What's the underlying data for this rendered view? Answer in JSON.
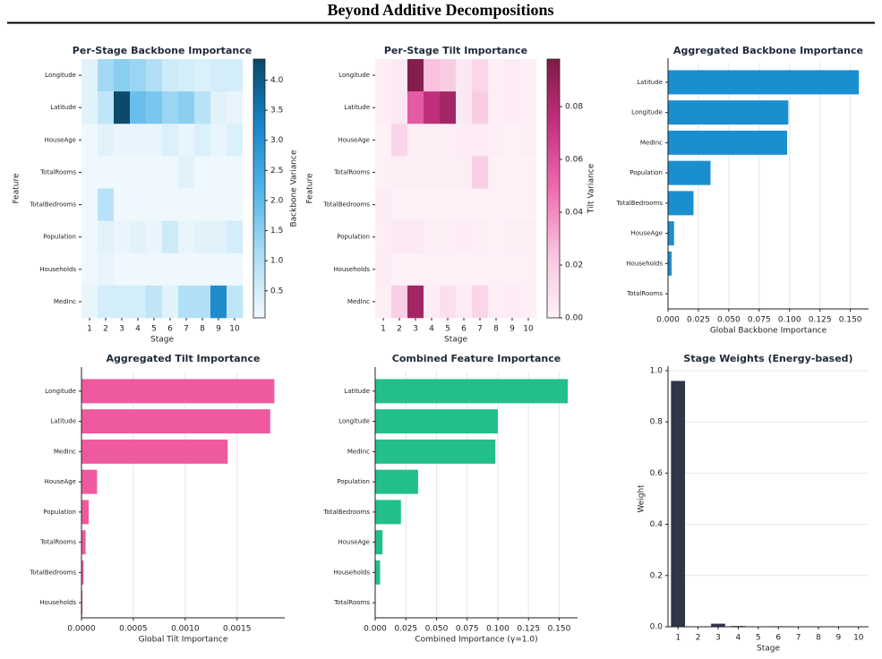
{
  "title": "Beyond Additive Decompositions",
  "chart_data": [
    {
      "type": "heatmap",
      "title": "Per-Stage Backbone Importance",
      "xlabel": "Stage",
      "ylabel": "Feature",
      "zlabel": "Backbone Variance",
      "categories": [
        "1",
        "2",
        "3",
        "4",
        "5",
        "6",
        "7",
        "8",
        "9",
        "10"
      ],
      "rows": [
        "Longitude",
        "Latitude",
        "HouseAge",
        "TotalRooms",
        "TotalBedrooms",
        "Population",
        "Households",
        "MedInc"
      ],
      "values": [
        [
          0.3,
          1.2,
          1.5,
          1.3,
          1.0,
          0.6,
          0.5,
          0.4,
          0.5,
          0.5
        ],
        [
          0.3,
          0.8,
          4.3,
          1.9,
          1.7,
          1.3,
          1.5,
          0.9,
          0.3,
          0.2
        ],
        [
          0.1,
          0.3,
          0.2,
          0.2,
          0.2,
          0.4,
          0.2,
          0.4,
          0.2,
          0.4
        ],
        [
          0.1,
          0.1,
          0.1,
          0.1,
          0.1,
          0.1,
          0.3,
          0.1,
          0.1,
          0.1
        ],
        [
          0.1,
          0.9,
          0.1,
          0.1,
          0.1,
          0.1,
          0.1,
          0.1,
          0.1,
          0.1
        ],
        [
          0.1,
          0.3,
          0.2,
          0.3,
          0.2,
          0.6,
          0.2,
          0.3,
          0.3,
          0.5
        ],
        [
          0.1,
          0.2,
          0.1,
          0.1,
          0.1,
          0.1,
          0.1,
          0.1,
          0.1,
          0.1
        ],
        [
          0.2,
          0.5,
          0.5,
          0.5,
          0.8,
          0.3,
          1.0,
          1.0,
          3.1,
          0.8
        ]
      ],
      "zlim": [
        0.05,
        4.35
      ],
      "zticks": [
        0.5,
        {
          "value": 1.0,
          "label": "1.0"
        },
        1.5,
        {
          "value": 2.0,
          "label": "2.0"
        },
        2.5,
        {
          "value": 3.0,
          "label": "3.0"
        },
        3.5,
        {
          "value": 4.0,
          "label": "4.0"
        }
      ],
      "colormap": [
        "#f2f9fd",
        "#a9dcf5",
        "#4fb3e8",
        "#1784c6",
        "#0b4768"
      ]
    },
    {
      "type": "heatmap",
      "title": "Per-Stage Tilt Importance",
      "xlabel": "Stage",
      "ylabel": "Feature",
      "zlabel": "Tilt Variance",
      "categories": [
        "1",
        "2",
        "3",
        "4",
        "5",
        "6",
        "7",
        "8",
        "9",
        "10"
      ],
      "rows": [
        "Longitude",
        "Latitude",
        "HouseAge",
        "TotalRooms",
        "TotalBedrooms",
        "Population",
        "Households",
        "MedInc"
      ],
      "values": [
        [
          0.002,
          0.005,
          0.095,
          0.025,
          0.02,
          0.005,
          0.015,
          0.002,
          0.004,
          0.002
        ],
        [
          0.002,
          0.005,
          0.055,
          0.075,
          0.085,
          0.005,
          0.02,
          0.002,
          0.003,
          0.002
        ],
        [
          0.001,
          0.015,
          0.002,
          0.002,
          0.002,
          0.003,
          0.004,
          0.002,
          0.001,
          0.002
        ],
        [
          0.001,
          0.002,
          0.002,
          0.002,
          0.002,
          0.002,
          0.018,
          0.001,
          0.001,
          0.001
        ],
        [
          0.003,
          0.001,
          0.001,
          0.001,
          0.001,
          0.001,
          0.001,
          0.001,
          0.001,
          0.001
        ],
        [
          0.002,
          0.005,
          0.005,
          0.002,
          0.002,
          0.003,
          0.002,
          0.001,
          0.002,
          0.002
        ],
        [
          0.003,
          0.001,
          0.001,
          0.001,
          0.001,
          0.001,
          0.001,
          0.001,
          0.001,
          0.001
        ],
        [
          0.002,
          0.018,
          0.085,
          0.003,
          0.01,
          0.003,
          0.015,
          0.002,
          0.003,
          0.002
        ]
      ],
      "zlim": [
        0,
        0.098
      ],
      "zticks": [
        {
          "value": 0,
          "label": "0.00"
        },
        {
          "value": 0.02,
          "label": "0.02"
        },
        {
          "value": 0.04,
          "label": "0.04"
        },
        {
          "value": 0.06,
          "label": "0.06"
        },
        {
          "value": 0.08,
          "label": "0.08"
        }
      ],
      "colormap": [
        "#fdf2f8",
        "#f9c3df",
        "#ef6ab0",
        "#c4307f",
        "#7d1b46"
      ]
    },
    {
      "type": "barh",
      "title": "Aggregated Backbone Importance",
      "xlabel": "Global Backbone Importance",
      "color": "#1a8fd0",
      "grid": true,
      "categories": [
        "Latitude",
        "Longitude",
        "MedInc",
        "Population",
        "TotalBedrooms",
        "HouseAge",
        "Households",
        "TotalRooms"
      ],
      "values": [
        0.157,
        0.099,
        0.098,
        0.035,
        0.021,
        0.005,
        0.003,
        0.0
      ],
      "xlim": [
        0,
        0.165
      ],
      "xticks": [
        {
          "value": 0,
          "label": "0.000"
        },
        {
          "value": 0.025,
          "label": "0.025"
        },
        {
          "value": 0.05,
          "label": "0.050"
        },
        {
          "value": 0.075,
          "label": "0.075"
        },
        {
          "value": 0.1,
          "label": "0.100"
        },
        {
          "value": 0.125,
          "label": "0.125"
        },
        {
          "value": 0.15,
          "label": "0.150"
        }
      ]
    },
    {
      "type": "barh",
      "title": "Aggregated Tilt Importance",
      "xlabel": "Global Tilt Importance",
      "color": "#ef5a9f",
      "grid": true,
      "categories": [
        "Longitude",
        "Latitude",
        "MedInc",
        "HouseAge",
        "Population",
        "TotalRooms",
        "TotalBedrooms",
        "Households"
      ],
      "values": [
        0.00186,
        0.00182,
        0.00141,
        0.00015,
        7e-05,
        4e-05,
        2e-05,
        1e-05
      ],
      "xlim": [
        0,
        0.00196
      ],
      "xticks": [
        {
          "value": 0,
          "label": "0.0000"
        },
        {
          "value": 0.0005,
          "label": "0.0005"
        },
        {
          "value": 0.001,
          "label": "0.0010"
        },
        {
          "value": 0.0015,
          "label": "0.0015"
        }
      ]
    },
    {
      "type": "barh",
      "title": "Combined Feature Importance",
      "xlabel": "Combined Importance (γ=1.0)",
      "color": "#22bf8a",
      "grid": true,
      "categories": [
        "Latitude",
        "Longitude",
        "MedInc",
        "Population",
        "TotalBedrooms",
        "HouseAge",
        "Households",
        "TotalRooms"
      ],
      "values": [
        0.157,
        0.1,
        0.098,
        0.035,
        0.021,
        0.006,
        0.004,
        0.0
      ],
      "xlim": [
        0,
        0.165
      ],
      "xticks": [
        {
          "value": 0,
          "label": "0.000"
        },
        {
          "value": 0.025,
          "label": "0.025"
        },
        {
          "value": 0.05,
          "label": "0.050"
        },
        {
          "value": 0.075,
          "label": "0.075"
        },
        {
          "value": 0.1,
          "label": "0.100"
        },
        {
          "value": 0.125,
          "label": "0.125"
        },
        {
          "value": 0.15,
          "label": "0.150"
        }
      ]
    },
    {
      "type": "bar",
      "title": "Stage Weights (Energy-based)",
      "xlabel": "Stage",
      "ylabel": "Weight",
      "color": "#2d3748",
      "grid": true,
      "categories": [
        "1",
        "2",
        "3",
        "4",
        "5",
        "6",
        "7",
        "8",
        "9",
        "10"
      ],
      "values": [
        0.96,
        0.0,
        0.012,
        0.003,
        0.001,
        0.002,
        0.001,
        0.001,
        0.001,
        0.001
      ],
      "ylim": [
        0,
        1.0
      ],
      "yticks": [
        {
          "value": 0,
          "label": "0.0"
        },
        0.2,
        0.4,
        0.6,
        0.8,
        {
          "value": 1.0,
          "label": "1.0"
        }
      ]
    }
  ]
}
